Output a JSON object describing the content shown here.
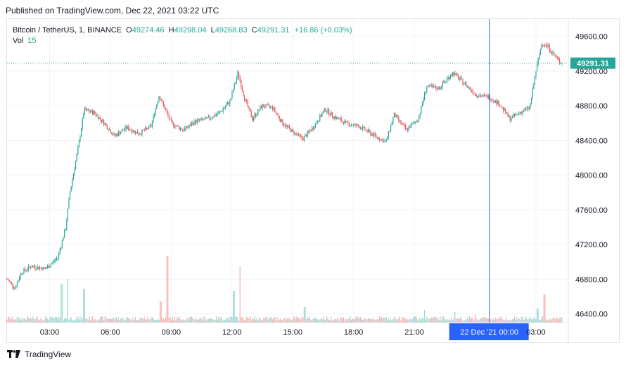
{
  "header": {
    "published": "Published on TradingView.com, Dec 22, 2021 03:22 UTC"
  },
  "legend": {
    "symbol": "Bitcoin / TetherUS, 1, BINANCE",
    "open_label": "O",
    "open": "49274.46",
    "high_label": "H",
    "high": "49298.04",
    "low_label": "L",
    "low": "49268.83",
    "close_label": "C",
    "close": "49291.31",
    "change": "+16.86 (+0.03%)",
    "vol_label": "Vol",
    "vol": "15"
  },
  "footer": {
    "brand": "TradingView",
    "logo_icon": "tradingview-logo-icon"
  },
  "colors": {
    "up": "#26a69a",
    "down": "#ef5350",
    "price_label_bg": "#26a69a",
    "crosshair": "#2962ff",
    "crosshair_label_bg": "#2962ff",
    "grid": "#f0f3fa"
  },
  "chart_data": {
    "type": "candlestick",
    "symbol": "Bitcoin / TetherUS",
    "interval": "1",
    "exchange": "BINANCE",
    "ylim": [
      46300,
      49800
    ],
    "y_ticks": [
      46400,
      46800,
      47200,
      47600,
      48000,
      48400,
      48800,
      49200,
      49600
    ],
    "y_tick_labels": [
      "46400.00",
      "46800.00",
      "47200.00",
      "47600.00",
      "48000.00",
      "48400.00",
      "48800.00",
      "49200.00",
      "49600.00"
    ],
    "x_ticks_hours": [
      3,
      6,
      9,
      12,
      15,
      18,
      21,
      27
    ],
    "x_tick_labels": [
      "03:00",
      "06:00",
      "09:00",
      "12:00",
      "15:00",
      "18:00",
      "21:00",
      "03:00"
    ],
    "x_range_hours": [
      0.9,
      28.6
    ],
    "crosshair": {
      "hour": 24.7,
      "label": "22 Dec '21   00:00"
    },
    "last_price": 49291.31,
    "last_price_label": "49291.31",
    "price_path": [
      [
        0.9,
        46800
      ],
      [
        1.3,
        46700
      ],
      [
        1.6,
        46880
      ],
      [
        2.1,
        46950
      ],
      [
        2.8,
        46920
      ],
      [
        3.4,
        47050
      ],
      [
        3.8,
        47400
      ],
      [
        4.0,
        47800
      ],
      [
        4.4,
        48300
      ],
      [
        4.7,
        48750
      ],
      [
        5.2,
        48720
      ],
      [
        5.7,
        48600
      ],
      [
        6.2,
        48450
      ],
      [
        6.8,
        48550
      ],
      [
        7.4,
        48480
      ],
      [
        8.0,
        48560
      ],
      [
        8.4,
        48920
      ],
      [
        9.0,
        48600
      ],
      [
        9.6,
        48520
      ],
      [
        10.2,
        48620
      ],
      [
        10.8,
        48650
      ],
      [
        11.4,
        48720
      ],
      [
        11.9,
        48850
      ],
      [
        12.3,
        49180
      ],
      [
        12.6,
        48900
      ],
      [
        13.0,
        48650
      ],
      [
        13.5,
        48800
      ],
      [
        14.0,
        48780
      ],
      [
        14.5,
        48600
      ],
      [
        15.0,
        48500
      ],
      [
        15.5,
        48420
      ],
      [
        16.0,
        48550
      ],
      [
        16.6,
        48760
      ],
      [
        17.0,
        48680
      ],
      [
        17.6,
        48600
      ],
      [
        18.3,
        48560
      ],
      [
        19.0,
        48460
      ],
      [
        19.6,
        48380
      ],
      [
        20.0,
        48700
      ],
      [
        20.6,
        48520
      ],
      [
        21.2,
        48650
      ],
      [
        21.6,
        49020
      ],
      [
        22.2,
        49000
      ],
      [
        22.9,
        49180
      ],
      [
        23.5,
        49050
      ],
      [
        24.1,
        48920
      ],
      [
        24.7,
        48900
      ],
      [
        25.2,
        48820
      ],
      [
        25.7,
        48650
      ],
      [
        26.2,
        48720
      ],
      [
        26.7,
        48780
      ],
      [
        27.0,
        49200
      ],
      [
        27.3,
        49530
      ],
      [
        27.6,
        49480
      ],
      [
        28.0,
        49350
      ],
      [
        28.3,
        49290
      ]
    ],
    "volume_spikes": [
      {
        "hour": 3.6,
        "volume": 55
      },
      {
        "hour": 3.9,
        "volume": 62
      },
      {
        "hour": 4.7,
        "volume": 48
      },
      {
        "hour": 8.8,
        "volume": 95
      },
      {
        "hour": 8.5,
        "volume": 30
      },
      {
        "hour": 12.4,
        "volume": 80
      },
      {
        "hour": 12.1,
        "volume": 45
      },
      {
        "hour": 15.6,
        "volume": 22
      },
      {
        "hour": 21.5,
        "volume": 18
      },
      {
        "hour": 23.0,
        "volume": 15
      },
      {
        "hour": 24.0,
        "volume": 12
      },
      {
        "hour": 27.4,
        "volume": 40
      },
      {
        "hour": 27.1,
        "volume": 20
      }
    ]
  }
}
